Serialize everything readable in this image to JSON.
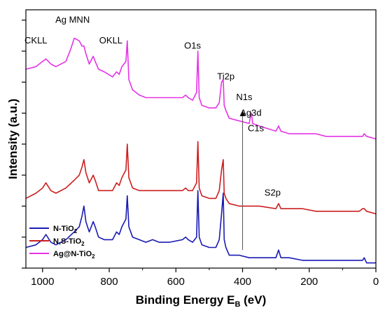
{
  "chart_data": {
    "type": "line",
    "xlabel": "Binding Energy E",
    "xlabel_sub": "B",
    "xlabel_unit": " (eV)",
    "ylabel": "Intensity (a.u.)",
    "xlim": [
      1050,
      0
    ],
    "x_reversed": true,
    "x_ticks": [
      1000,
      800,
      600,
      400,
      200,
      0
    ],
    "ylim": [
      0,
      100
    ],
    "y_tick_labels_shown": false,
    "grid": false,
    "legend_position": "bottom-left",
    "series": [
      {
        "name": "N-TiO2",
        "name_base": "N-TiO",
        "name_sub": "2",
        "color": "#1a1ab4",
        "points": [
          [
            1050,
            8
          ],
          [
            1020,
            9
          ],
          [
            1000,
            11
          ],
          [
            990,
            13
          ],
          [
            975,
            10
          ],
          [
            960,
            9
          ],
          [
            930,
            11
          ],
          [
            905,
            14
          ],
          [
            890,
            16
          ],
          [
            882,
            20
          ],
          [
            876,
            24
          ],
          [
            870,
            18
          ],
          [
            860,
            14
          ],
          [
            848,
            18
          ],
          [
            842,
            16
          ],
          [
            832,
            12
          ],
          [
            815,
            11
          ],
          [
            790,
            11
          ],
          [
            778,
            14
          ],
          [
            770,
            13
          ],
          [
            762,
            16
          ],
          [
            750,
            19
          ],
          [
            746,
            28
          ],
          [
            741,
            16
          ],
          [
            730,
            12
          ],
          [
            710,
            11
          ],
          [
            690,
            10
          ],
          [
            670,
            11
          ],
          [
            650,
            10
          ],
          [
            620,
            10
          ],
          [
            580,
            11
          ],
          [
            571,
            12
          ],
          [
            563,
            11
          ],
          [
            550,
            10
          ],
          [
            538,
            12
          ],
          [
            534,
            30
          ],
          [
            530,
            12
          ],
          [
            522,
            9
          ],
          [
            500,
            8
          ],
          [
            480,
            8
          ],
          [
            470,
            11
          ],
          [
            463,
            21
          ],
          [
            458,
            29
          ],
          [
            455,
            11
          ],
          [
            450,
            8
          ],
          [
            440,
            5
          ],
          [
            410,
            5
          ],
          [
            380,
            4
          ],
          [
            350,
            4
          ],
          [
            300,
            4
          ],
          [
            292,
            7
          ],
          [
            285,
            4
          ],
          [
            260,
            4
          ],
          [
            220,
            3
          ],
          [
            180,
            3
          ],
          [
            150,
            3
          ],
          [
            120,
            3
          ],
          [
            100,
            3
          ],
          [
            80,
            3
          ],
          [
            60,
            3
          ],
          [
            50,
            3
          ],
          [
            40,
            3
          ],
          [
            35,
            4
          ],
          [
            28,
            2
          ],
          [
            0,
            2
          ]
        ]
      },
      {
        "name": "N,S-TiO2",
        "name_base": "N,S-TiO",
        "name_sub": "2",
        "color": "#cc1f1f",
        "points": [
          [
            1050,
            27
          ],
          [
            1020,
            29
          ],
          [
            1000,
            31
          ],
          [
            990,
            33
          ],
          [
            975,
            30
          ],
          [
            960,
            29
          ],
          [
            930,
            31
          ],
          [
            905,
            34
          ],
          [
            890,
            36
          ],
          [
            882,
            39
          ],
          [
            876,
            42
          ],
          [
            870,
            37
          ],
          [
            860,
            33
          ],
          [
            848,
            36
          ],
          [
            842,
            34
          ],
          [
            832,
            30
          ],
          [
            815,
            30
          ],
          [
            790,
            30
          ],
          [
            778,
            33
          ],
          [
            770,
            32
          ],
          [
            762,
            35
          ],
          [
            750,
            38
          ],
          [
            746,
            48
          ],
          [
            741,
            35
          ],
          [
            730,
            31
          ],
          [
            710,
            30
          ],
          [
            690,
            30
          ],
          [
            670,
            30
          ],
          [
            650,
            30
          ],
          [
            620,
            30
          ],
          [
            580,
            30
          ],
          [
            571,
            31
          ],
          [
            563,
            30
          ],
          [
            550,
            30
          ],
          [
            538,
            33
          ],
          [
            534,
            49
          ],
          [
            530,
            31
          ],
          [
            522,
            28
          ],
          [
            500,
            27
          ],
          [
            480,
            27
          ],
          [
            470,
            30
          ],
          [
            463,
            38
          ],
          [
            458,
            42
          ],
          [
            455,
            29
          ],
          [
            450,
            27
          ],
          [
            440,
            25
          ],
          [
            410,
            24
          ],
          [
            380,
            24
          ],
          [
            350,
            24
          ],
          [
            300,
            23
          ],
          [
            292,
            25
          ],
          [
            285,
            23
          ],
          [
            260,
            23
          ],
          [
            220,
            23
          ],
          [
            180,
            22
          ],
          [
            150,
            22
          ],
          [
            120,
            22
          ],
          [
            100,
            22
          ],
          [
            80,
            22
          ],
          [
            60,
            22
          ],
          [
            50,
            22
          ],
          [
            40,
            23
          ],
          [
            35,
            23
          ],
          [
            28,
            22
          ],
          [
            0,
            21
          ]
        ]
      },
      {
        "name": "Ag@N-TiO2",
        "name_base": "Ag@N-TiO",
        "name_sub": "2",
        "color": "#e633e6",
        "points": [
          [
            1050,
            77
          ],
          [
            1020,
            78
          ],
          [
            1000,
            80
          ],
          [
            990,
            81
          ],
          [
            975,
            79
          ],
          [
            960,
            78
          ],
          [
            930,
            80
          ],
          [
            915,
            85
          ],
          [
            905,
            89
          ],
          [
            890,
            88
          ],
          [
            882,
            86
          ],
          [
            876,
            86
          ],
          [
            870,
            83
          ],
          [
            860,
            79
          ],
          [
            848,
            82
          ],
          [
            842,
            80
          ],
          [
            832,
            77
          ],
          [
            815,
            76
          ],
          [
            790,
            74
          ],
          [
            778,
            76
          ],
          [
            770,
            75
          ],
          [
            762,
            78
          ],
          [
            750,
            80
          ],
          [
            746,
            88
          ],
          [
            741,
            73
          ],
          [
            730,
            69
          ],
          [
            710,
            67
          ],
          [
            690,
            66
          ],
          [
            670,
            66
          ],
          [
            650,
            66
          ],
          [
            620,
            66
          ],
          [
            580,
            66
          ],
          [
            571,
            67
          ],
          [
            563,
            66
          ],
          [
            550,
            65
          ],
          [
            538,
            68
          ],
          [
            534,
            84
          ],
          [
            530,
            66
          ],
          [
            522,
            63
          ],
          [
            500,
            62
          ],
          [
            480,
            62
          ],
          [
            470,
            64
          ],
          [
            463,
            72
          ],
          [
            458,
            73
          ],
          [
            455,
            63
          ],
          [
            450,
            61
          ],
          [
            440,
            58
          ],
          [
            410,
            57
          ],
          [
            380,
            56
          ],
          [
            376,
            59
          ],
          [
            373,
            60
          ],
          [
            370,
            56
          ],
          [
            350,
            55
          ],
          [
            300,
            53
          ],
          [
            292,
            55
          ],
          [
            285,
            53
          ],
          [
            260,
            52
          ],
          [
            220,
            52
          ],
          [
            180,
            52
          ],
          [
            150,
            51
          ],
          [
            120,
            51
          ],
          [
            100,
            51
          ],
          [
            80,
            51
          ],
          [
            60,
            51
          ],
          [
            50,
            51
          ],
          [
            40,
            51
          ],
          [
            35,
            52
          ],
          [
            28,
            51
          ],
          [
            0,
            50
          ]
        ]
      }
    ],
    "annotations": [
      {
        "text": "CKLL",
        "x": 1020,
        "y": 87
      },
      {
        "text": "Ag MNN",
        "x": 910,
        "y": 95
      },
      {
        "text": "OKLL",
        "x": 795,
        "y": 87
      },
      {
        "text": "O1s",
        "x": 550,
        "y": 85
      },
      {
        "text": "Ti2p",
        "x": 450,
        "y": 73
      },
      {
        "text": "N1s",
        "x": 395,
        "y": 65
      },
      {
        "text": "Ag3d",
        "x": 375,
        "y": 59
      },
      {
        "text": "C1s",
        "x": 360,
        "y": 53
      },
      {
        "text": "S2p",
        "x": 310,
        "y": 28
      }
    ],
    "marker_line": {
      "x": 400,
      "y_from": 7,
      "y_to": 61
    }
  }
}
